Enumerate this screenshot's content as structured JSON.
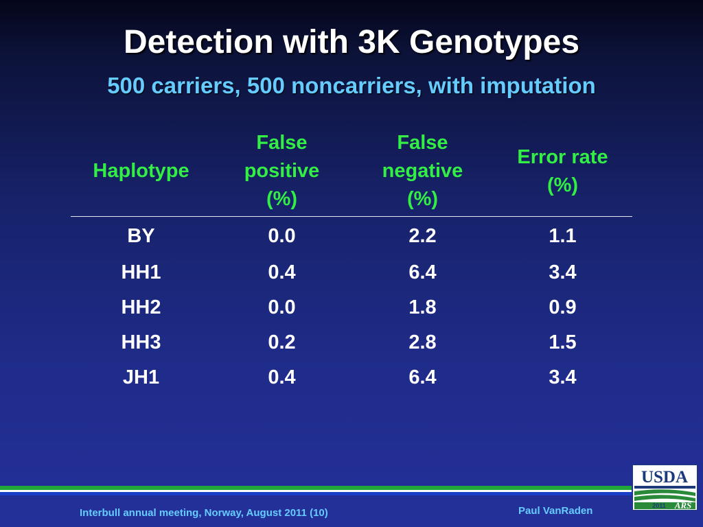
{
  "slide": {
    "title": "Detection with 3K Genotypes",
    "subtitle": "500 carriers, 500 noncarriers, with imputation"
  },
  "table": {
    "headers": [
      [
        "Haplotype"
      ],
      [
        "False",
        "positive",
        "(%)"
      ],
      [
        "False",
        "negative",
        "(%)"
      ],
      [
        "Error rate",
        "(%)"
      ]
    ],
    "rows": [
      [
        "BY",
        "0.0",
        "2.2",
        "1.1"
      ],
      [
        "HH1",
        "0.4",
        "6.4",
        "3.4"
      ],
      [
        "HH2",
        "0.0",
        "1.8",
        "0.9"
      ],
      [
        "HH3",
        "0.2",
        "2.8",
        "1.5"
      ],
      [
        "JH1",
        "0.4",
        "6.4",
        "3.4"
      ]
    ]
  },
  "footer": {
    "left": "Interbull annual meeting, Norway, August 2011 (10)",
    "right": "Paul VanRaden"
  },
  "logo": {
    "name": "usda-ars-logo",
    "text": "USDA",
    "year": "2011",
    "ars_mark": "ARS"
  },
  "colors": {
    "title": "#ffffff",
    "subtitle": "#66ccff",
    "header_text": "#33ee44",
    "cell_text": "#ffffff",
    "footer_text": "#66ccff",
    "stripe_green": "#21a63a",
    "stripe_blue": "#1a3fc7",
    "usda_blue": "#1a3a7a",
    "usda_green": "#2a8a3a"
  }
}
